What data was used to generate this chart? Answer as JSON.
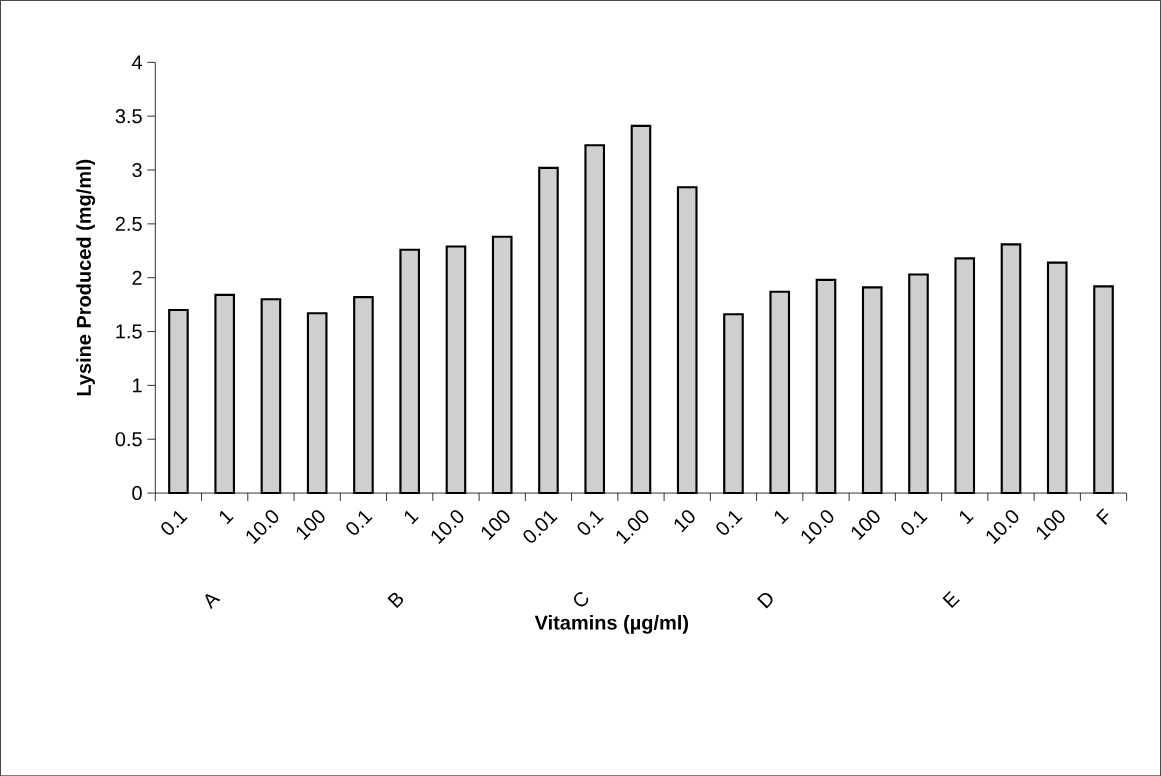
{
  "chart_data": {
    "type": "bar",
    "xlabel": "Vitamins (µg/ml)",
    "ylabel": "Lysine Produced (mg/ml)",
    "categories": [
      "0.1",
      "1",
      "10.0",
      "100",
      "0.1",
      "1",
      "10.0",
      "100",
      "0.01",
      "0.1",
      "1.00",
      "10",
      "0.1",
      "1",
      "10.0",
      "100",
      "0.1",
      "1",
      "10.0",
      "100",
      "F"
    ],
    "values": [
      1.7,
      1.84,
      1.8,
      1.67,
      1.82,
      2.26,
      2.29,
      2.38,
      3.02,
      3.23,
      3.41,
      2.84,
      1.66,
      1.87,
      1.98,
      1.91,
      2.03,
      2.18,
      2.31,
      2.14,
      1.92
    ],
    "color": "#cfcfcf",
    "ylim": [
      0,
      4
    ],
    "yticks": [
      0,
      0.5,
      1,
      1.5,
      2,
      2.5,
      3,
      3.5,
      4
    ],
    "annotations": [
      "A",
      "B",
      "C",
      "D",
      "E"
    ]
  }
}
